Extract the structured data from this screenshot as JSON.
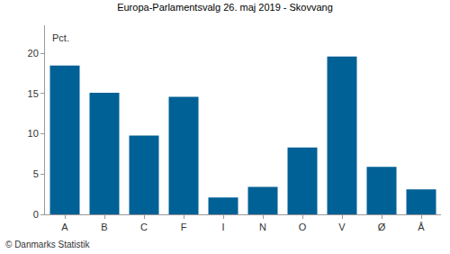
{
  "chart_data": {
    "type": "bar",
    "title": "Europa-Parlamentsvalg 26. maj 2019 - Skovvang",
    "ylabel": "Pct.",
    "annotations": [
      "© Danmarks Statistik"
    ],
    "categories": [
      "A",
      "B",
      "C",
      "F",
      "I",
      "N",
      "O",
      "V",
      "Ø",
      "Å"
    ],
    "values": [
      18.5,
      15.1,
      9.8,
      14.6,
      2.1,
      3.4,
      8.3,
      19.6,
      5.9,
      3.1
    ],
    "color": "#006196",
    "ylim": [
      0,
      23.5
    ],
    "yticks": [
      0,
      5,
      10,
      15,
      20
    ],
    "grid": false
  }
}
